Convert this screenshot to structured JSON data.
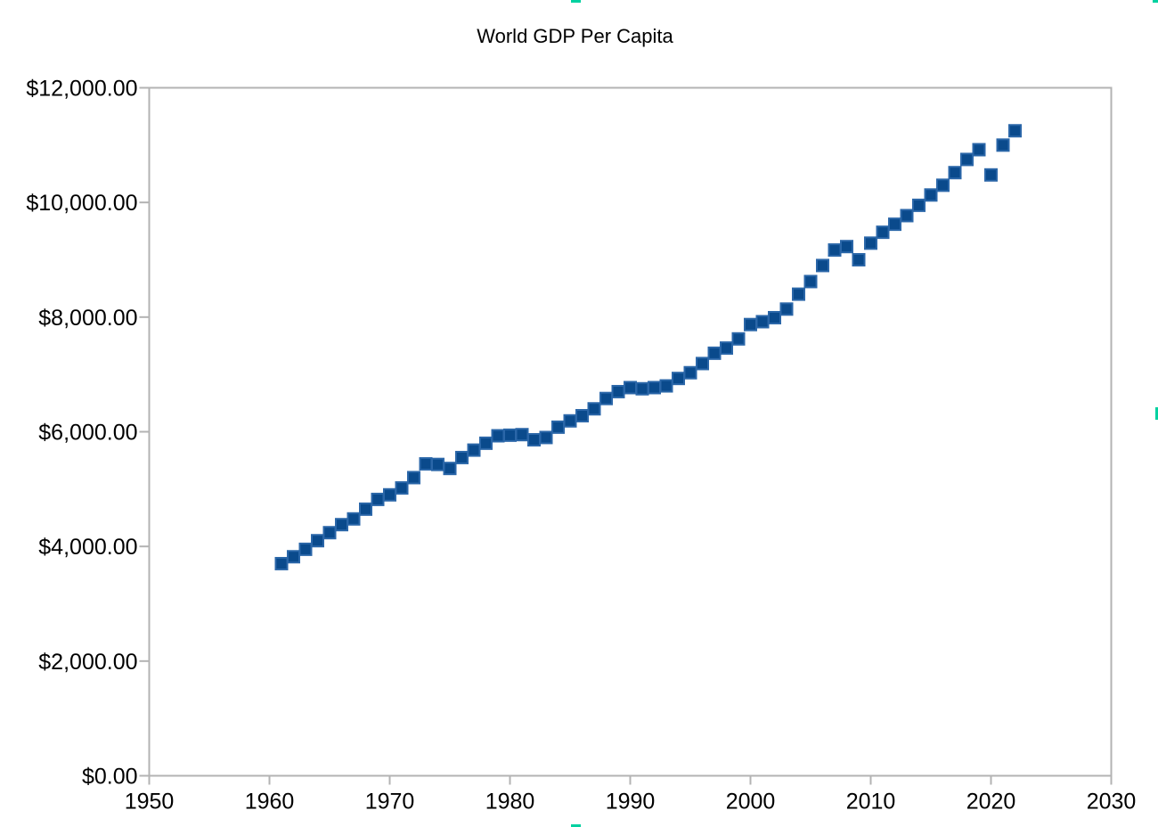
{
  "chart_data": {
    "type": "scatter",
    "title": "World GDP Per Capita",
    "xlabel": "",
    "ylabel": "",
    "xlim": [
      1950,
      2030
    ],
    "ylim": [
      0,
      12000
    ],
    "x_ticks": [
      1950,
      1960,
      1970,
      1980,
      1990,
      2000,
      2010,
      2020,
      2030
    ],
    "y_ticks": [
      0,
      2000,
      4000,
      6000,
      8000,
      10000,
      12000
    ],
    "y_tick_labels": [
      "$0.00",
      "$2,000.00",
      "$4,000.00",
      "$6,000.00",
      "$8,000.00",
      "$10,000.00",
      "$12,000.00"
    ],
    "x_tick_labels": [
      "1950",
      "1960",
      "1970",
      "1980",
      "1990",
      "2000",
      "2010",
      "2020",
      "2030"
    ],
    "grid": false,
    "legend": "none",
    "marker_color": "#0a4a8c",
    "series": [
      {
        "x": [
          1961,
          1962,
          1963,
          1964,
          1965,
          1966,
          1967,
          1968,
          1969,
          1970,
          1971,
          1972,
          1973,
          1974,
          1975,
          1976,
          1977,
          1978,
          1979,
          1980,
          1981,
          1982,
          1983,
          1984,
          1985,
          1986,
          1987,
          1988,
          1989,
          1990,
          1991,
          1992,
          1993,
          1994,
          1995,
          1996,
          1997,
          1998,
          1999,
          2000,
          2001,
          2002,
          2003,
          2004,
          2005,
          2006,
          2007,
          2008,
          2009,
          2010,
          2011,
          2012,
          2013,
          2014,
          2015,
          2016,
          2017,
          2018,
          2019,
          2020,
          2021,
          2022
        ],
        "y": [
          3700,
          3820,
          3950,
          4100,
          4240,
          4380,
          4480,
          4650,
          4820,
          4900,
          5020,
          5200,
          5440,
          5430,
          5360,
          5550,
          5680,
          5800,
          5930,
          5940,
          5950,
          5860,
          5900,
          6080,
          6190,
          6280,
          6400,
          6580,
          6700,
          6770,
          6750,
          6770,
          6800,
          6930,
          7030,
          7190,
          7370,
          7460,
          7620,
          7870,
          7920,
          7990,
          8140,
          8400,
          8620,
          8900,
          9170,
          9230,
          9000,
          9290,
          9480,
          9620,
          9770,
          9950,
          10130,
          10300,
          10520,
          10750,
          10920,
          10480,
          11000,
          11250
        ]
      }
    ]
  }
}
